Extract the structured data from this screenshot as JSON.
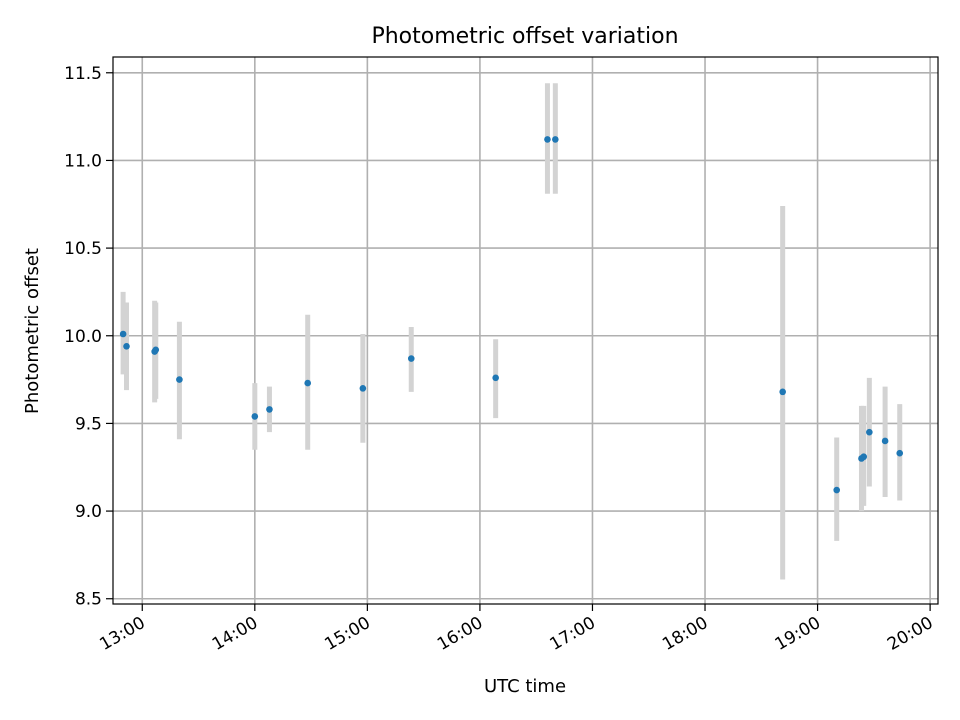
{
  "chart_data": {
    "type": "scatter",
    "title": "Photometric offset variation",
    "xlabel": "UTC time",
    "ylabel": "Photometric offset",
    "x_unit": "UTC time (hours)",
    "xlim": [
      12.74,
      20.07
    ],
    "ylim": [
      8.47,
      11.59
    ],
    "x_ticks": [
      {
        "value": 13,
        "label": "13:00"
      },
      {
        "value": 14,
        "label": "14:00"
      },
      {
        "value": 15,
        "label": "15:00"
      },
      {
        "value": 16,
        "label": "16:00"
      },
      {
        "value": 17,
        "label": "17:00"
      },
      {
        "value": 18,
        "label": "18:00"
      },
      {
        "value": 19,
        "label": "19:00"
      },
      {
        "value": 20,
        "label": "20:00"
      }
    ],
    "y_ticks": [
      {
        "value": 8.5,
        "label": "8.5"
      },
      {
        "value": 9.0,
        "label": "9.0"
      },
      {
        "value": 9.5,
        "label": "9.5"
      },
      {
        "value": 10.0,
        "label": "10.0"
      },
      {
        "value": 10.5,
        "label": "10.5"
      },
      {
        "value": 11.0,
        "label": "11.0"
      },
      {
        "value": 11.5,
        "label": "11.5"
      }
    ],
    "grid": true,
    "legend": false,
    "marker_color": "#1f77b4",
    "errorbar_color": "#d3d3d3",
    "points": [
      {
        "x": 12.83,
        "y": 10.01,
        "ylo": 9.78,
        "yhi": 10.25
      },
      {
        "x": 12.86,
        "y": 9.94,
        "ylo": 9.69,
        "yhi": 10.19
      },
      {
        "x": 13.11,
        "y": 9.91,
        "ylo": 9.62,
        "yhi": 10.2
      },
      {
        "x": 13.12,
        "y": 9.92,
        "ylo": 9.64,
        "yhi": 10.19
      },
      {
        "x": 13.33,
        "y": 9.75,
        "ylo": 9.41,
        "yhi": 10.08
      },
      {
        "x": 14.0,
        "y": 9.54,
        "ylo": 9.35,
        "yhi": 9.73
      },
      {
        "x": 14.13,
        "y": 9.58,
        "ylo": 9.45,
        "yhi": 9.71
      },
      {
        "x": 14.47,
        "y": 9.73,
        "ylo": 9.35,
        "yhi": 10.12
      },
      {
        "x": 14.96,
        "y": 9.7,
        "ylo": 9.39,
        "yhi": 10.01
      },
      {
        "x": 15.39,
        "y": 9.87,
        "ylo": 9.68,
        "yhi": 10.05
      },
      {
        "x": 16.14,
        "y": 9.76,
        "ylo": 9.53,
        "yhi": 9.98
      },
      {
        "x": 16.6,
        "y": 11.12,
        "ylo": 10.81,
        "yhi": 11.44
      },
      {
        "x": 16.67,
        "y": 11.12,
        "ylo": 10.81,
        "yhi": 11.44
      },
      {
        "x": 18.69,
        "y": 9.68,
        "ylo": 8.61,
        "yhi": 10.74
      },
      {
        "x": 19.17,
        "y": 9.12,
        "ylo": 8.83,
        "yhi": 9.42
      },
      {
        "x": 19.39,
        "y": 9.3,
        "ylo": 9.0,
        "yhi": 9.6
      },
      {
        "x": 19.41,
        "y": 9.31,
        "ylo": 9.03,
        "yhi": 9.6
      },
      {
        "x": 19.46,
        "y": 9.45,
        "ylo": 9.14,
        "yhi": 9.76
      },
      {
        "x": 19.6,
        "y": 9.4,
        "ylo": 9.08,
        "yhi": 9.71
      },
      {
        "x": 19.73,
        "y": 9.33,
        "ylo": 9.06,
        "yhi": 9.61
      }
    ]
  }
}
